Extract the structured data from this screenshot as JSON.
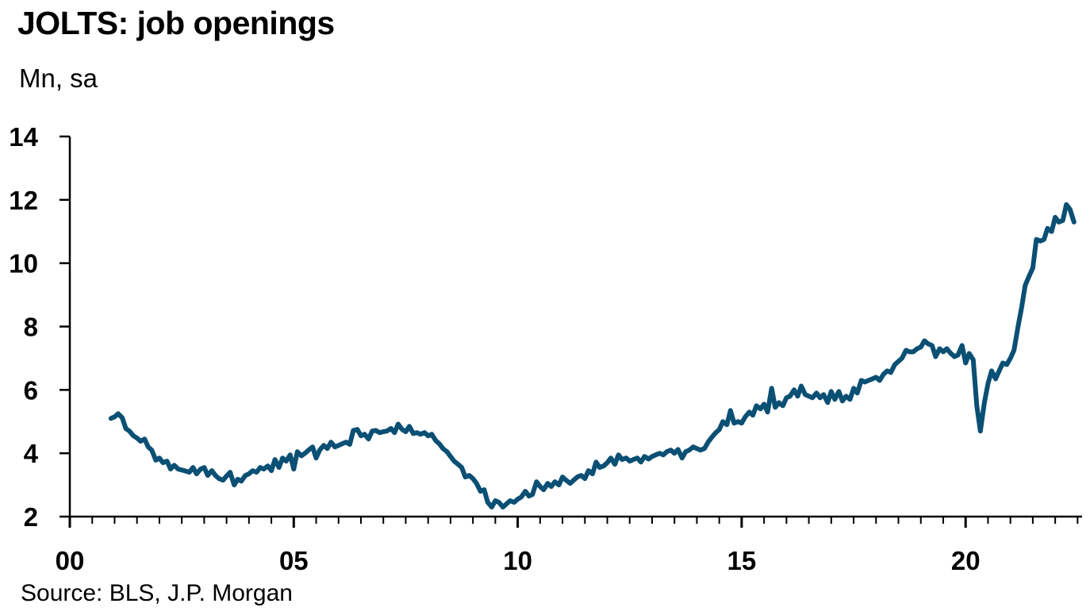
{
  "header": {
    "title": "JOLTS: job openings",
    "subtitle": "Mn, sa"
  },
  "footer": {
    "source": "Source: BLS, J.P. Morgan"
  },
  "chart_data": {
    "type": "line",
    "title": "JOLTS: job openings",
    "ylabel": "Mn, sa",
    "xlabel": "",
    "ylim": [
      2,
      14
    ],
    "xlim": [
      2000,
      2022.6
    ],
    "yticks": [
      2,
      4,
      6,
      8,
      10,
      12,
      14
    ],
    "ytick_labels": [
      "2",
      "4",
      "6",
      "8",
      "10",
      "12",
      "14"
    ],
    "xticks": [
      2000,
      2005,
      2010,
      2015,
      2020
    ],
    "xtick_labels": [
      "00",
      "05",
      "10",
      "15",
      "20"
    ],
    "x_minor_step_years": 0.5,
    "grid": false,
    "line_color": "#0a4f74",
    "series": [
      {
        "points": [
          [
            2000.92,
            5.1
          ],
          [
            2001.0,
            5.15
          ],
          [
            2001.08,
            5.25
          ],
          [
            2001.17,
            5.12
          ],
          [
            2001.25,
            4.78
          ],
          [
            2001.33,
            4.7
          ],
          [
            2001.42,
            4.55
          ],
          [
            2001.5,
            4.48
          ],
          [
            2001.58,
            4.38
          ],
          [
            2001.67,
            4.45
          ],
          [
            2001.75,
            4.2
          ],
          [
            2001.83,
            4.1
          ],
          [
            2001.92,
            3.78
          ],
          [
            2002.0,
            3.85
          ],
          [
            2002.08,
            3.7
          ],
          [
            2002.17,
            3.75
          ],
          [
            2002.25,
            3.5
          ],
          [
            2002.33,
            3.62
          ],
          [
            2002.42,
            3.5
          ],
          [
            2002.5,
            3.47
          ],
          [
            2002.58,
            3.44
          ],
          [
            2002.67,
            3.4
          ],
          [
            2002.75,
            3.55
          ],
          [
            2002.83,
            3.35
          ],
          [
            2002.92,
            3.5
          ],
          [
            2003.0,
            3.55
          ],
          [
            2003.08,
            3.3
          ],
          [
            2003.17,
            3.45
          ],
          [
            2003.25,
            3.3
          ],
          [
            2003.33,
            3.2
          ],
          [
            2003.42,
            3.15
          ],
          [
            2003.5,
            3.28
          ],
          [
            2003.58,
            3.4
          ],
          [
            2003.67,
            3.0
          ],
          [
            2003.75,
            3.18
          ],
          [
            2003.83,
            3.12
          ],
          [
            2003.92,
            3.3
          ],
          [
            2004.0,
            3.35
          ],
          [
            2004.08,
            3.45
          ],
          [
            2004.17,
            3.4
          ],
          [
            2004.25,
            3.55
          ],
          [
            2004.33,
            3.5
          ],
          [
            2004.42,
            3.6
          ],
          [
            2004.5,
            3.45
          ],
          [
            2004.58,
            3.8
          ],
          [
            2004.67,
            3.55
          ],
          [
            2004.75,
            3.85
          ],
          [
            2004.83,
            3.75
          ],
          [
            2004.92,
            3.95
          ],
          [
            2005.0,
            3.5
          ],
          [
            2005.08,
            4.05
          ],
          [
            2005.17,
            3.92
          ],
          [
            2005.25,
            4.0
          ],
          [
            2005.33,
            4.1
          ],
          [
            2005.42,
            4.2
          ],
          [
            2005.5,
            3.85
          ],
          [
            2005.58,
            4.1
          ],
          [
            2005.67,
            4.25
          ],
          [
            2005.75,
            4.15
          ],
          [
            2005.83,
            4.35
          ],
          [
            2005.92,
            4.2
          ],
          [
            2006.0,
            4.25
          ],
          [
            2006.08,
            4.3
          ],
          [
            2006.17,
            4.35
          ],
          [
            2006.25,
            4.28
          ],
          [
            2006.33,
            4.72
          ],
          [
            2006.42,
            4.75
          ],
          [
            2006.5,
            4.55
          ],
          [
            2006.58,
            4.6
          ],
          [
            2006.67,
            4.45
          ],
          [
            2006.75,
            4.7
          ],
          [
            2006.83,
            4.72
          ],
          [
            2006.92,
            4.65
          ],
          [
            2007.0,
            4.68
          ],
          [
            2007.08,
            4.7
          ],
          [
            2007.17,
            4.78
          ],
          [
            2007.25,
            4.65
          ],
          [
            2007.33,
            4.92
          ],
          [
            2007.42,
            4.75
          ],
          [
            2007.5,
            4.68
          ],
          [
            2007.58,
            4.85
          ],
          [
            2007.67,
            4.62
          ],
          [
            2007.75,
            4.65
          ],
          [
            2007.83,
            4.6
          ],
          [
            2007.92,
            4.65
          ],
          [
            2008.0,
            4.55
          ],
          [
            2008.08,
            4.6
          ],
          [
            2008.17,
            4.4
          ],
          [
            2008.25,
            4.3
          ],
          [
            2008.33,
            4.15
          ],
          [
            2008.42,
            4.05
          ],
          [
            2008.5,
            3.9
          ],
          [
            2008.58,
            3.75
          ],
          [
            2008.67,
            3.65
          ],
          [
            2008.75,
            3.55
          ],
          [
            2008.83,
            3.25
          ],
          [
            2008.92,
            3.3
          ],
          [
            2009.0,
            3.2
          ],
          [
            2009.08,
            3.05
          ],
          [
            2009.17,
            2.8
          ],
          [
            2009.25,
            2.85
          ],
          [
            2009.33,
            2.45
          ],
          [
            2009.42,
            2.3
          ],
          [
            2009.5,
            2.5
          ],
          [
            2009.58,
            2.45
          ],
          [
            2009.67,
            2.3
          ],
          [
            2009.75,
            2.4
          ],
          [
            2009.83,
            2.5
          ],
          [
            2009.92,
            2.45
          ],
          [
            2010.0,
            2.55
          ],
          [
            2010.08,
            2.62
          ],
          [
            2010.17,
            2.8
          ],
          [
            2010.25,
            2.65
          ],
          [
            2010.33,
            2.7
          ],
          [
            2010.42,
            3.1
          ],
          [
            2010.5,
            2.95
          ],
          [
            2010.58,
            2.85
          ],
          [
            2010.67,
            3.05
          ],
          [
            2010.75,
            2.95
          ],
          [
            2010.83,
            3.1
          ],
          [
            2010.92,
            3.0
          ],
          [
            2011.0,
            3.25
          ],
          [
            2011.08,
            3.15
          ],
          [
            2011.17,
            3.05
          ],
          [
            2011.25,
            3.15
          ],
          [
            2011.33,
            3.25
          ],
          [
            2011.42,
            3.3
          ],
          [
            2011.5,
            3.2
          ],
          [
            2011.58,
            3.45
          ],
          [
            2011.67,
            3.35
          ],
          [
            2011.75,
            3.72
          ],
          [
            2011.83,
            3.55
          ],
          [
            2011.92,
            3.6
          ],
          [
            2012.0,
            3.7
          ],
          [
            2012.08,
            3.85
          ],
          [
            2012.17,
            3.65
          ],
          [
            2012.25,
            3.95
          ],
          [
            2012.33,
            3.8
          ],
          [
            2012.42,
            3.85
          ],
          [
            2012.5,
            3.75
          ],
          [
            2012.58,
            3.8
          ],
          [
            2012.67,
            3.85
          ],
          [
            2012.75,
            3.72
          ],
          [
            2012.83,
            3.9
          ],
          [
            2012.92,
            3.82
          ],
          [
            2013.0,
            3.9
          ],
          [
            2013.08,
            3.95
          ],
          [
            2013.17,
            4.0
          ],
          [
            2013.25,
            3.95
          ],
          [
            2013.33,
            4.05
          ],
          [
            2013.42,
            4.1
          ],
          [
            2013.5,
            4.0
          ],
          [
            2013.58,
            4.12
          ],
          [
            2013.67,
            3.85
          ],
          [
            2013.75,
            4.05
          ],
          [
            2013.83,
            4.1
          ],
          [
            2013.92,
            4.2
          ],
          [
            2014.0,
            4.15
          ],
          [
            2014.08,
            4.1
          ],
          [
            2014.17,
            4.15
          ],
          [
            2014.25,
            4.35
          ],
          [
            2014.33,
            4.5
          ],
          [
            2014.42,
            4.65
          ],
          [
            2014.5,
            4.75
          ],
          [
            2014.58,
            5.0
          ],
          [
            2014.67,
            4.9
          ],
          [
            2014.75,
            5.35
          ],
          [
            2014.83,
            4.95
          ],
          [
            2014.92,
            5.0
          ],
          [
            2015.0,
            4.95
          ],
          [
            2015.08,
            5.15
          ],
          [
            2015.17,
            5.3
          ],
          [
            2015.25,
            5.2
          ],
          [
            2015.33,
            5.5
          ],
          [
            2015.42,
            5.4
          ],
          [
            2015.5,
            5.55
          ],
          [
            2015.58,
            5.3
          ],
          [
            2015.67,
            6.05
          ],
          [
            2015.75,
            5.45
          ],
          [
            2015.83,
            5.6
          ],
          [
            2015.92,
            5.5
          ],
          [
            2016.0,
            5.75
          ],
          [
            2016.08,
            5.8
          ],
          [
            2016.17,
            6.0
          ],
          [
            2016.25,
            5.8
          ],
          [
            2016.33,
            6.12
          ],
          [
            2016.42,
            5.85
          ],
          [
            2016.5,
            5.8
          ],
          [
            2016.58,
            5.75
          ],
          [
            2016.67,
            5.9
          ],
          [
            2016.75,
            5.75
          ],
          [
            2016.83,
            5.85
          ],
          [
            2016.92,
            5.6
          ],
          [
            2017.0,
            5.95
          ],
          [
            2017.08,
            5.7
          ],
          [
            2017.17,
            5.95
          ],
          [
            2017.25,
            5.65
          ],
          [
            2017.33,
            5.8
          ],
          [
            2017.42,
            5.7
          ],
          [
            2017.5,
            6.05
          ],
          [
            2017.58,
            5.9
          ],
          [
            2017.67,
            6.3
          ],
          [
            2017.75,
            6.25
          ],
          [
            2017.83,
            6.3
          ],
          [
            2017.92,
            6.35
          ],
          [
            2018.0,
            6.4
          ],
          [
            2018.08,
            6.3
          ],
          [
            2018.17,
            6.5
          ],
          [
            2018.25,
            6.6
          ],
          [
            2018.33,
            6.55
          ],
          [
            2018.42,
            6.8
          ],
          [
            2018.5,
            6.9
          ],
          [
            2018.58,
            7.0
          ],
          [
            2018.67,
            7.25
          ],
          [
            2018.75,
            7.2
          ],
          [
            2018.83,
            7.2
          ],
          [
            2018.92,
            7.3
          ],
          [
            2019.0,
            7.35
          ],
          [
            2019.08,
            7.55
          ],
          [
            2019.17,
            7.45
          ],
          [
            2019.25,
            7.4
          ],
          [
            2019.33,
            7.05
          ],
          [
            2019.42,
            7.3
          ],
          [
            2019.5,
            7.2
          ],
          [
            2019.58,
            7.3
          ],
          [
            2019.67,
            7.15
          ],
          [
            2019.75,
            7.05
          ],
          [
            2019.83,
            7.1
          ],
          [
            2019.92,
            7.4
          ],
          [
            2020.0,
            6.85
          ],
          [
            2020.08,
            7.15
          ],
          [
            2020.17,
            6.95
          ],
          [
            2020.25,
            5.5
          ],
          [
            2020.33,
            4.7
          ],
          [
            2020.42,
            5.6
          ],
          [
            2020.5,
            6.2
          ],
          [
            2020.58,
            6.6
          ],
          [
            2020.67,
            6.35
          ],
          [
            2020.75,
            6.6
          ],
          [
            2020.83,
            6.85
          ],
          [
            2020.92,
            6.8
          ],
          [
            2021.0,
            7.0
          ],
          [
            2021.08,
            7.25
          ],
          [
            2021.17,
            8.0
          ],
          [
            2021.25,
            8.6
          ],
          [
            2021.33,
            9.3
          ],
          [
            2021.42,
            9.6
          ],
          [
            2021.5,
            9.85
          ],
          [
            2021.58,
            10.75
          ],
          [
            2021.67,
            10.7
          ],
          [
            2021.75,
            10.75
          ],
          [
            2021.83,
            11.1
          ],
          [
            2021.92,
            11.0
          ],
          [
            2022.0,
            11.45
          ],
          [
            2022.08,
            11.3
          ],
          [
            2022.17,
            11.35
          ],
          [
            2022.25,
            11.85
          ],
          [
            2022.33,
            11.7
          ],
          [
            2022.42,
            11.3
          ]
        ]
      }
    ]
  }
}
